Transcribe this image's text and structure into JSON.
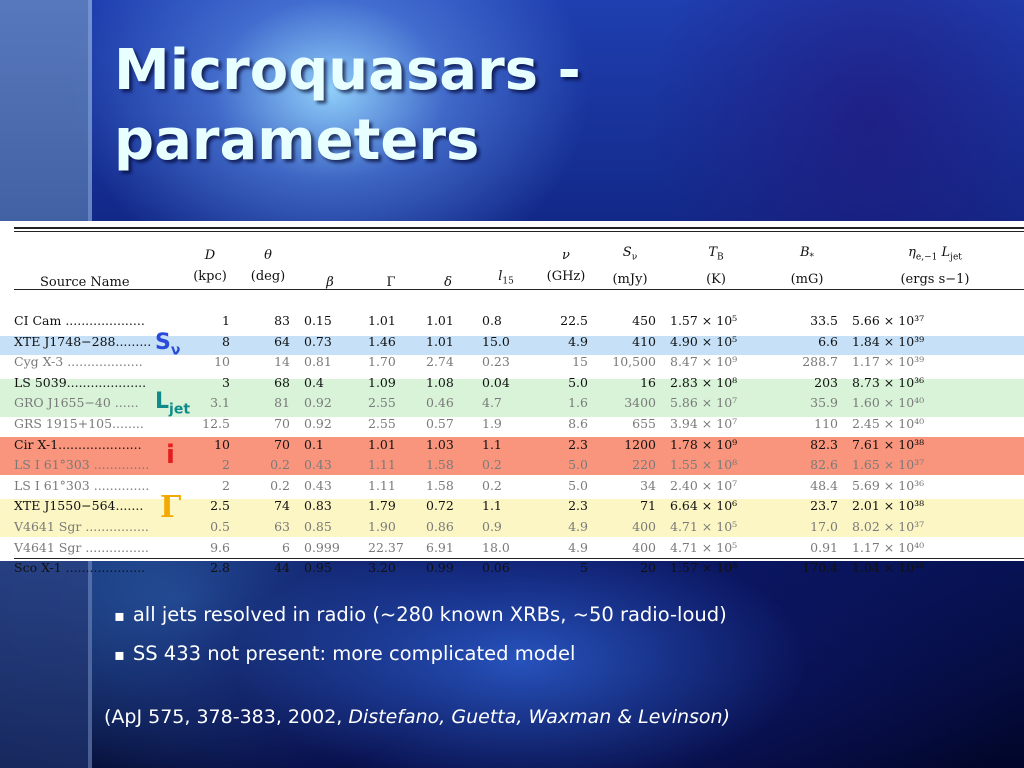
{
  "slide": {
    "title_line1": "Microquasars -",
    "title_line2": "parameters"
  },
  "table": {
    "columns": [
      {
        "sym": "",
        "unit": "Source Name"
      },
      {
        "sym": "D",
        "unit": "(kpc)"
      },
      {
        "sym": "θ",
        "unit": "(deg)"
      },
      {
        "sym": "β",
        "unit": ""
      },
      {
        "sym": "Γ",
        "unit": ""
      },
      {
        "sym": "δ",
        "unit": ""
      },
      {
        "sym": "l15",
        "unit": ""
      },
      {
        "sym": "ν",
        "unit": "(GHz)"
      },
      {
        "sym": "Sν",
        "unit": "(mJy)"
      },
      {
        "sym": "TB",
        "unit": "(K)"
      },
      {
        "sym": "B*",
        "unit": "(mG)"
      },
      {
        "sym": "ηe,−1 Ljet",
        "unit": "(ergs s−1)"
      }
    ],
    "rows": [
      [
        "CI Cam ....................",
        "1",
        "83",
        "0.15",
        "1.01",
        "1.01",
        "0.8",
        "22.5",
        "450",
        "1.57 × 10⁵",
        "33.5",
        "5.66 × 10³⁷"
      ],
      [
        "XTE J1748−288.........",
        "8",
        "64",
        "0.73",
        "1.46",
        "1.01",
        "15.0",
        "4.9",
        "410",
        "4.90 × 10⁵",
        "6.6",
        "1.84 × 10³⁹"
      ],
      [
        "Cyg X-3 ...................",
        "10",
        "14",
        "0.81",
        "1.70",
        "2.74",
        "0.23",
        "15",
        "10,500",
        "8.47 × 10⁹",
        "288.7",
        "1.17 × 10³⁹"
      ],
      [
        "LS 5039....................",
        "3",
        "68",
        "0.4",
        "1.09",
        "1.08",
        "0.04",
        "5.0",
        "16",
        "2.83 × 10⁸",
        "203",
        "8.73 × 10³⁶"
      ],
      [
        "GRO J1655−40 ......",
        "3.1",
        "81",
        "0.92",
        "2.55",
        "0.46",
        "4.7",
        "1.6",
        "3400",
        "5.86 × 10⁷",
        "35.9",
        "1.60 × 10⁴⁰"
      ],
      [
        "GRS 1915+105........",
        "12.5",
        "70",
        "0.92",
        "2.55",
        "0.57",
        "1.9",
        "8.6",
        "655",
        "3.94 × 10⁷",
        "110",
        "2.45 × 10⁴⁰"
      ],
      [
        "Cir X-1.....................",
        "10",
        "70",
        "0.1",
        "1.01",
        "1.03",
        "1.1",
        "2.3",
        "1200",
        "1.78 × 10⁹",
        "82.3",
        "7.61 × 10³⁸"
      ],
      [
        "LS I 61°303 ..............",
        "2",
        "0.2",
        "0.43",
        "1.11",
        "1.58",
        "0.2",
        "5.0",
        "220",
        "1.55 × 10⁸",
        "82.6",
        "1.65 × 10³⁷"
      ],
      [
        "LS I 61°303 ..............",
        "2",
        "0.2",
        "0.43",
        "1.11",
        "1.58",
        "0.2",
        "5.0",
        "34",
        "2.40 × 10⁷",
        "48.4",
        "5.69 × 10³⁶"
      ],
      [
        "XTE J1550−564.......",
        "2.5",
        "74",
        "0.83",
        "1.79",
        "0.72",
        "1.1",
        "2.3",
        "71",
        "6.64 × 10⁶",
        "23.7",
        "2.01 × 10³⁸"
      ],
      [
        "V4641 Sgr ................",
        "0.5",
        "63",
        "0.85",
        "1.90",
        "0.86",
        "0.9",
        "4.9",
        "400",
        "4.71 × 10⁵",
        "17.0",
        "8.02 × 10³⁷"
      ],
      [
        "V4641 Sgr ................",
        "9.6",
        "6",
        "0.999",
        "22.37",
        "6.91",
        "18.0",
        "4.9",
        "400",
        "4.71 × 10⁵",
        "0.91",
        "1.17 × 10⁴⁰"
      ],
      [
        "Sco X-1 ....................",
        "2.8",
        "44",
        "0.95",
        "3.20",
        "0.99",
        "0.06",
        "5",
        "20",
        "1.57 × 10⁸",
        "170.4",
        "1.04 × 10³⁸"
      ]
    ],
    "row_highlights": [
      "none",
      "none",
      "blue",
      "none",
      "green",
      "green",
      "none",
      "red",
      "red",
      "none",
      "yellow",
      "yellow",
      "none"
    ],
    "highlight_colors": {
      "blue": "#c5e0f7",
      "green": "#d8f3d8",
      "red": "#f9957d",
      "yellow": "#fbf6c4"
    }
  },
  "annotations": {
    "s_nu": {
      "main": "S",
      "sub": "ν",
      "color": "#2a4bd8"
    },
    "l_jet": {
      "main": "L",
      "sub": "jet",
      "color": "#0d8a8a"
    },
    "incl": {
      "main": "i",
      "color": "#e31e1e"
    },
    "gamma": {
      "main": "Γ",
      "color": "#f2a900"
    }
  },
  "bullets": [
    "all jets resolved in radio (~280 known XRBs, ~50 radio-loud)",
    "SS 433 not present: more complicated model"
  ],
  "citation": {
    "prefix": "(ApJ 575, 378-383, 2002, ",
    "authors": "Distefano, Guetta, Waxman & Levinson)"
  }
}
